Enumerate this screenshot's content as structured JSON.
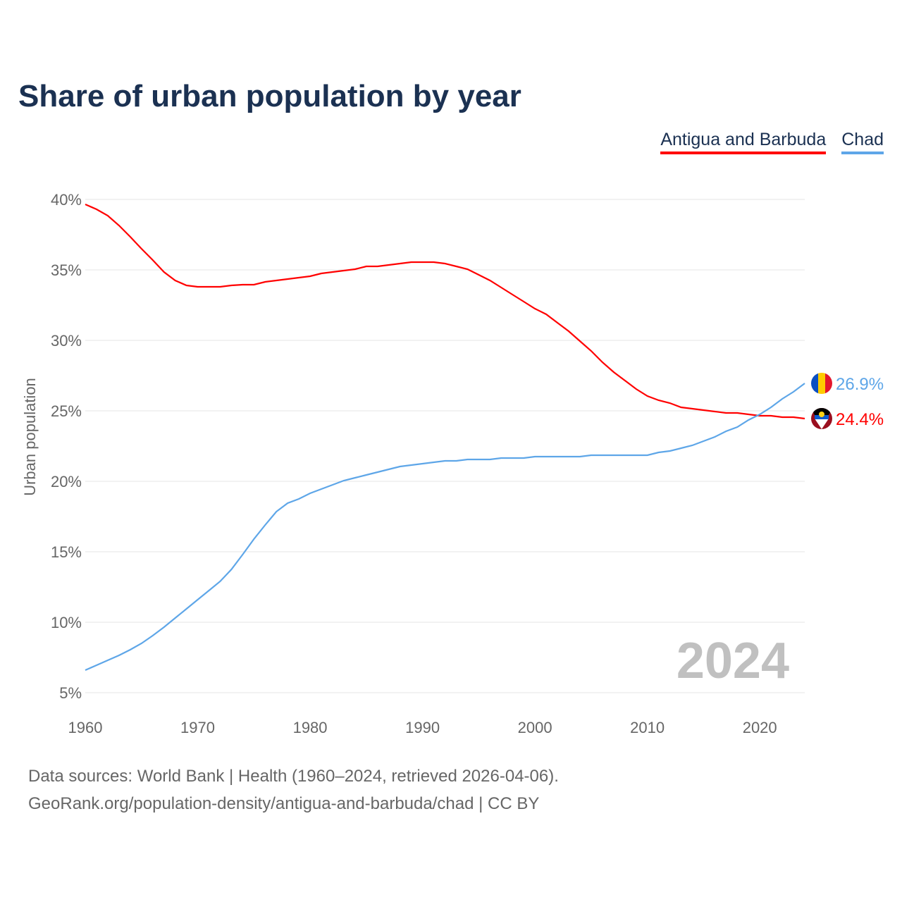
{
  "title": "Share of urban population by year",
  "footer": {
    "line1": "Data sources: World Bank | Health (1960–2024, retrieved 2026-04-06).",
    "line2": "GeoRank.org/population-density/antigua-and-barbuda/chad | CC BY"
  },
  "chart_data": {
    "type": "line",
    "title": "Share of urban population by year",
    "ylabel": "Urban population",
    "xlabel": "",
    "xlim": [
      1960,
      2024
    ],
    "ylim": [
      5,
      40
    ],
    "x_ticks": [
      1960,
      1970,
      1980,
      1990,
      2000,
      2010,
      2020
    ],
    "y_ticks": [
      5,
      10,
      15,
      20,
      25,
      30,
      35,
      40
    ],
    "y_tick_labels": [
      "5%",
      "10%",
      "15%",
      "20%",
      "25%",
      "30%",
      "35%",
      "40%"
    ],
    "x_tick_labels": [
      "1960",
      "1970",
      "1980",
      "1990",
      "2000",
      "2010",
      "2020"
    ],
    "grid": true,
    "legend_position": "top-right",
    "year_watermark": "2024",
    "x_start": 1960,
    "series": [
      {
        "name": "Antigua and Barbuda",
        "color": "#ff0000",
        "end_label": "24.4%",
        "flag": "antigua-and-barbuda-flag",
        "values": [
          39.65,
          39.3,
          38.85,
          38.15,
          37.35,
          36.5,
          35.7,
          34.85,
          34.25,
          33.9,
          33.8,
          33.8,
          33.8,
          33.9,
          33.95,
          33.95,
          34.15,
          34.25,
          34.35,
          34.45,
          34.55,
          34.75,
          34.85,
          34.95,
          35.05,
          35.25,
          35.25,
          35.35,
          35.45,
          35.55,
          35.55,
          35.55,
          35.45,
          35.25,
          35.05,
          34.65,
          34.25,
          33.75,
          33.25,
          32.75,
          32.25,
          31.85,
          31.25,
          30.65,
          29.95,
          29.25,
          28.45,
          27.75,
          27.15,
          26.55,
          26.05,
          25.75,
          25.55,
          25.25,
          25.15,
          25.05,
          24.95,
          24.85,
          24.85,
          24.75,
          24.65,
          24.65,
          24.55,
          24.55,
          24.45
        ]
      },
      {
        "name": "Chad",
        "color": "#5ea6e8",
        "end_label": "26.9%",
        "flag": "chad-flag",
        "values": [
          6.6,
          6.95,
          7.3,
          7.65,
          8.05,
          8.5,
          9.05,
          9.65,
          10.3,
          10.95,
          11.6,
          12.25,
          12.9,
          13.75,
          14.8,
          15.9,
          16.9,
          17.85,
          18.45,
          18.75,
          19.15,
          19.45,
          19.75,
          20.05,
          20.25,
          20.45,
          20.65,
          20.85,
          21.05,
          21.15,
          21.25,
          21.35,
          21.45,
          21.45,
          21.55,
          21.55,
          21.55,
          21.65,
          21.65,
          21.65,
          21.75,
          21.75,
          21.75,
          21.75,
          21.75,
          21.85,
          21.85,
          21.85,
          21.85,
          21.85,
          21.85,
          22.05,
          22.15,
          22.35,
          22.55,
          22.85,
          23.15,
          23.55,
          23.85,
          24.35,
          24.75,
          25.25,
          25.85,
          26.35,
          26.95
        ]
      }
    ]
  }
}
